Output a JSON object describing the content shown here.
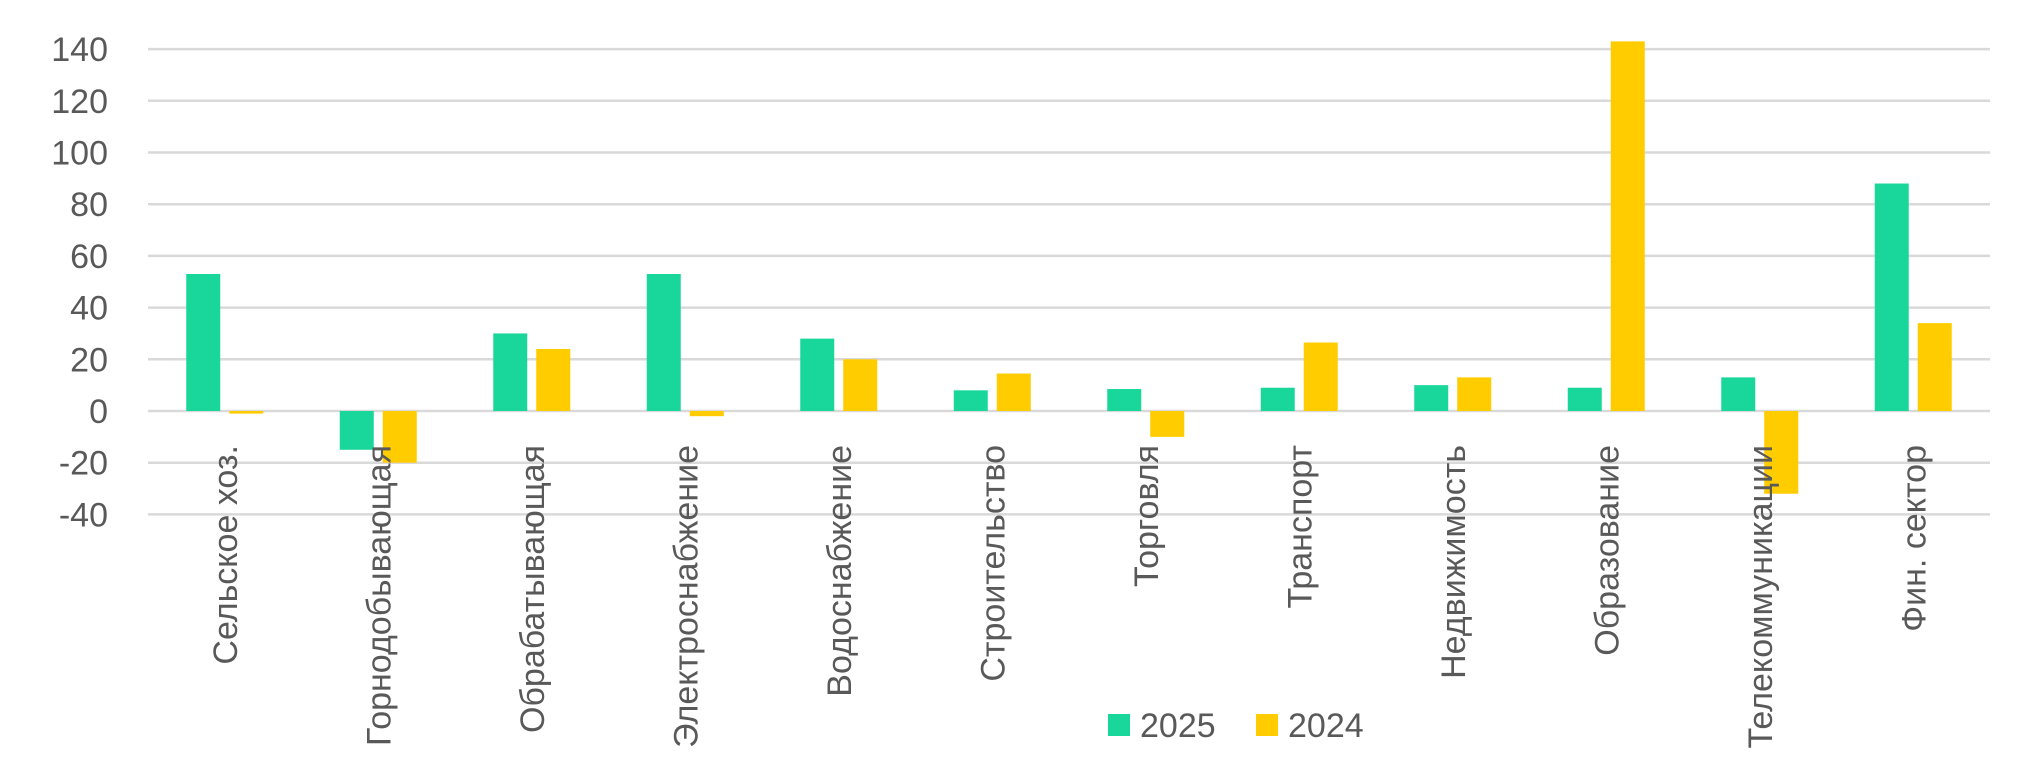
{
  "chart_data": {
    "type": "bar",
    "title": "",
    "xlabel": "",
    "ylabel": "",
    "ylim": [
      -40,
      140
    ],
    "yticks": [
      140,
      120,
      100,
      80,
      60,
      40,
      20,
      0,
      -20,
      -40
    ],
    "grid": true,
    "legend_position": "bottom",
    "categories": [
      "Сельское хоз.",
      "Горнодобывающая",
      "Обрабатывающая",
      "Электроснабжение",
      "Водоснабжение",
      "Строительство",
      "Торговля",
      "Транспорт",
      "Недвижимость",
      "Образование",
      "Телекоммуникации",
      "Фин. сектор"
    ],
    "series": [
      {
        "name": "2025",
        "color": "#19d79b",
        "values": [
          53,
          -15,
          30,
          53,
          28,
          8,
          8.5,
          9,
          10,
          9,
          13,
          88
        ]
      },
      {
        "name": "2024",
        "color": "#ffcc00",
        "values": [
          -1,
          -20,
          24,
          -2,
          20,
          14.5,
          -10,
          26.5,
          13,
          143,
          -32,
          34
        ]
      }
    ]
  }
}
